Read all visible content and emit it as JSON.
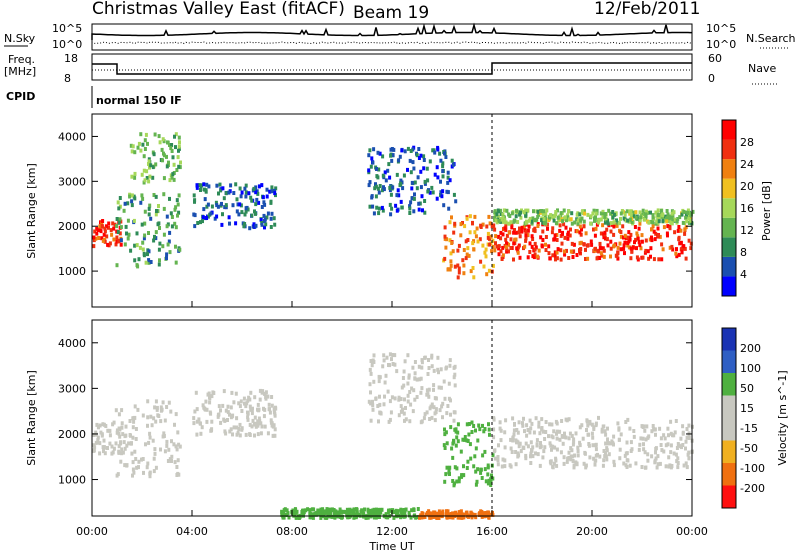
{
  "header": {
    "title": "Christmas Valley East (fitACF)",
    "beam": "Beam 19",
    "date": "12/Feb/2011"
  },
  "panels": {
    "nsky_label": "N.Sky",
    "nsearch_label": "N.Search",
    "noise_ticks": [
      "10^5",
      "10^0"
    ],
    "freq_label": "Freq.",
    "freq_unit": "[MHz]",
    "freq_ticks": [
      "18",
      "8"
    ],
    "nave_label": "Nave",
    "nave_ticks": [
      "60",
      "0"
    ],
    "cpid_label": "CPID",
    "cpid_text": "normal 150 IF"
  },
  "colors": {
    "power": [
      "#0000ff",
      "#1a4fb0",
      "#2e8b57",
      "#64b450",
      "#a6d85a",
      "#f0c020",
      "#f08010",
      "#f03010",
      "#ff0000"
    ],
    "velocity": [
      "#1a33b3",
      "#2f5fc4",
      "#4fb040",
      "#c8c8c0",
      "#c8c8c0",
      "#f0b020",
      "#f07010",
      "#ff1010"
    ]
  },
  "chart_data": [
    {
      "type": "heatmap",
      "name": "Power",
      "xlabel": "",
      "ylabel": "Slant Range [km]",
      "yticks": [
        "1000",
        "2000",
        "3000",
        "4000"
      ],
      "ylim": [
        200,
        4500
      ],
      "xlim": [
        0,
        24
      ],
      "colorbar_label": "Power [dB]",
      "colorbar_ticks": [
        "4",
        "8",
        "12",
        "16",
        "20",
        "24",
        "28"
      ],
      "colorbar_range": [
        0,
        30
      ],
      "regions": [
        {
          "t0": 0.0,
          "t1": 1.2,
          "r_lo": 1600,
          "r_hi": 2200,
          "value": 26
        },
        {
          "t0": 0.9,
          "t1": 3.5,
          "r_lo": 1100,
          "r_hi": 2800,
          "value": 10
        },
        {
          "t0": 1.5,
          "t1": 3.5,
          "r_lo": 3000,
          "r_hi": 4100,
          "value": 12
        },
        {
          "t0": 4.0,
          "t1": 7.3,
          "r_lo": 2000,
          "r_hi": 3000,
          "value": 6
        },
        {
          "t0": 11.0,
          "t1": 14.5,
          "r_lo": 2300,
          "r_hi": 3800,
          "value": 6
        },
        {
          "t0": 14.0,
          "t1": 16.0,
          "r_lo": 900,
          "r_hi": 2300,
          "value": 22
        },
        {
          "t0": 16.0,
          "t1": 24.0,
          "r_lo": 1300,
          "r_hi": 2100,
          "value": 26
        },
        {
          "t0": 16.0,
          "t1": 24.0,
          "r_lo": 2100,
          "r_hi": 2400,
          "value": 13
        }
      ]
    },
    {
      "type": "heatmap",
      "name": "Velocity",
      "xlabel": "Time UT",
      "ylabel": "Slant Range [km]",
      "yticks": [
        "1000",
        "2000",
        "3000",
        "4000"
      ],
      "ylim": [
        200,
        4500
      ],
      "xlim": [
        0,
        24
      ],
      "colorbar_label": "Velocity [m s^-1]",
      "colorbar_ticks": [
        "200",
        "100",
        "50",
        "15",
        "-15",
        "-50",
        "-100",
        "-200"
      ],
      "colorbar_range": [
        -250,
        250
      ],
      "regions": [
        {
          "t0": 0.0,
          "t1": 1.2,
          "r_lo": 1600,
          "r_hi": 2300,
          "value": 0
        },
        {
          "t0": 0.9,
          "t1": 3.5,
          "r_lo": 1100,
          "r_hi": 2800,
          "value": 0
        },
        {
          "t0": 4.0,
          "t1": 7.3,
          "r_lo": 2000,
          "r_hi": 3000,
          "value": 0
        },
        {
          "t0": 11.0,
          "t1": 14.5,
          "r_lo": 2300,
          "r_hi": 3800,
          "value": 0
        },
        {
          "t0": 14.0,
          "t1": 16.0,
          "r_lo": 900,
          "r_hi": 2300,
          "value": 40
        },
        {
          "t0": 16.0,
          "t1": 24.0,
          "r_lo": 1300,
          "r_hi": 2400,
          "value": 0
        },
        {
          "t0": 7.5,
          "t1": 13.0,
          "r_lo": 200,
          "r_hi": 400,
          "value": 40
        },
        {
          "t0": 13.0,
          "t1": 16.0,
          "r_lo": 200,
          "r_hi": 350,
          "value": -60
        }
      ]
    }
  ],
  "time_axis": {
    "label": "Time UT",
    "ticks": [
      "00:00",
      "04:00",
      "08:00",
      "12:00",
      "16:00",
      "20:00",
      "00:00"
    ]
  }
}
